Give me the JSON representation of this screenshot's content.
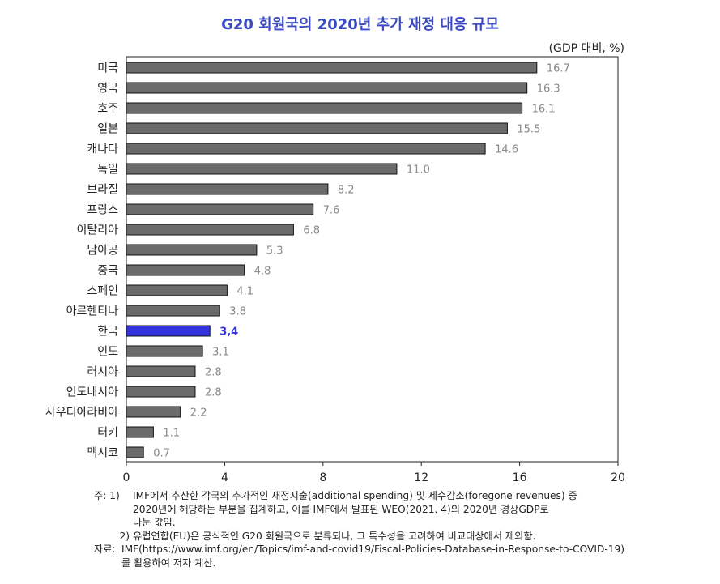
{
  "title": "G20 회원국의 2020년 추가 재정 대응 규모",
  "unit": "(GDP 대비, %)",
  "colors": {
    "bar": "#6b6b6b",
    "highlight": "#3333dd",
    "label": "#888888",
    "title": "#3a4bc4"
  },
  "chart_data": {
    "type": "bar",
    "orientation": "horizontal",
    "categories": [
      "미국",
      "영국",
      "호주",
      "일본",
      "캐나다",
      "독일",
      "브라질",
      "프랑스",
      "이탈리아",
      "남아공",
      "중국",
      "스페인",
      "아르헨티나",
      "한국",
      "인도",
      "러시아",
      "인도네시아",
      "사우디아라비아",
      "터키",
      "멕시코"
    ],
    "values": [
      16.7,
      16.3,
      16.1,
      15.5,
      14.6,
      11.0,
      8.2,
      7.6,
      6.8,
      5.3,
      4.8,
      4.1,
      3.8,
      3.4,
      3.1,
      2.8,
      2.8,
      2.2,
      1.1,
      0.7
    ],
    "value_labels": [
      "16.7",
      "16.3",
      "16.1",
      "15.5",
      "14.6",
      "11.0",
      "8.2",
      "7.6",
      "6.8",
      "5.3",
      "4.8",
      "4.1",
      "3.8",
      "3,4",
      "3.1",
      "2.8",
      "2.8",
      "2.2",
      "1.1",
      "0.7"
    ],
    "highlight": "한국",
    "xlim": [
      0,
      20
    ],
    "xticks": [
      0,
      4,
      8,
      12,
      16,
      20
    ],
    "grid": false
  },
  "notes": {
    "note1_head": "주: 1)",
    "note1_line1": "IMF에서 추산한 각국의 추가적인 재정지출(additional spending) 및 세수감소(foregone revenues) 중",
    "note1_line2": "2020년에 해당하는 부분을 집계하고, 이를 IMF에서 발표된 WEO(2021. 4)의 2020년 경상GDP로",
    "note1_line3": "나눈 값임.",
    "note2_head": "2)",
    "note2_line1": "유럽연합(EU)은 공식적인 G20 회원국으로 분류되나, 그 특수성을 고려하여 비교대상에서 제외함.",
    "source_head": "자료:",
    "source_line1": "IMF(https://www.imf.org/en/Topics/imf-and-covid19/Fiscal-Policies-Database-in-Response-to-COVID-19)",
    "source_line2": "를 활용하여 저자 계산."
  }
}
